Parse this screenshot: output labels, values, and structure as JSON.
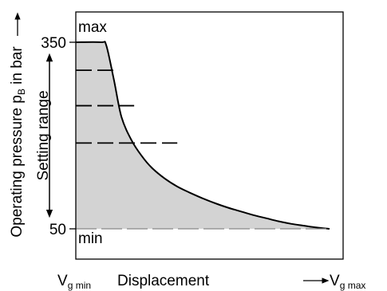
{
  "chart_data": {
    "type": "area",
    "x_axis": {
      "label": "Displacement",
      "min_label_main": "V",
      "min_label_sub": "g min",
      "max_label_main": "V",
      "max_label_sub": "g max",
      "range": [
        0,
        1
      ]
    },
    "y_axis": {
      "label_part1": "Operating pressure p",
      "label_sub": "B",
      "label_part2": " in bar",
      "range": [
        50,
        400
      ],
      "ticks": [
        {
          "value": 350,
          "label": "350"
        },
        {
          "value": 50,
          "label": "50"
        }
      ]
    },
    "setting_range_label": "Setting range",
    "annotations": {
      "max": "max",
      "min": "min"
    },
    "max_curve": {
      "x": [
        0.0,
        0.1,
        0.12,
        0.15,
        0.18,
        0.22,
        0.26,
        0.3,
        0.35,
        0.4,
        0.45,
        0.5,
        0.55,
        0.6,
        0.65,
        0.7,
        0.75,
        0.8,
        0.85,
        0.9,
        0.95,
        1.0
      ],
      "y": [
        350,
        350,
        345,
        290,
        230,
        192,
        167,
        148,
        131,
        118,
        108,
        99,
        91,
        84,
        78,
        72,
        67,
        62,
        58,
        55,
        52,
        50
      ]
    },
    "setting_lines": [
      {
        "pressure": 305,
        "x_end": 0.17
      },
      {
        "pressure": 248,
        "x_end": 0.23
      },
      {
        "pressure": 188,
        "x_end": 0.4
      },
      {
        "pressure": 50,
        "x_end": 1.0
      }
    ],
    "grid": false
  }
}
